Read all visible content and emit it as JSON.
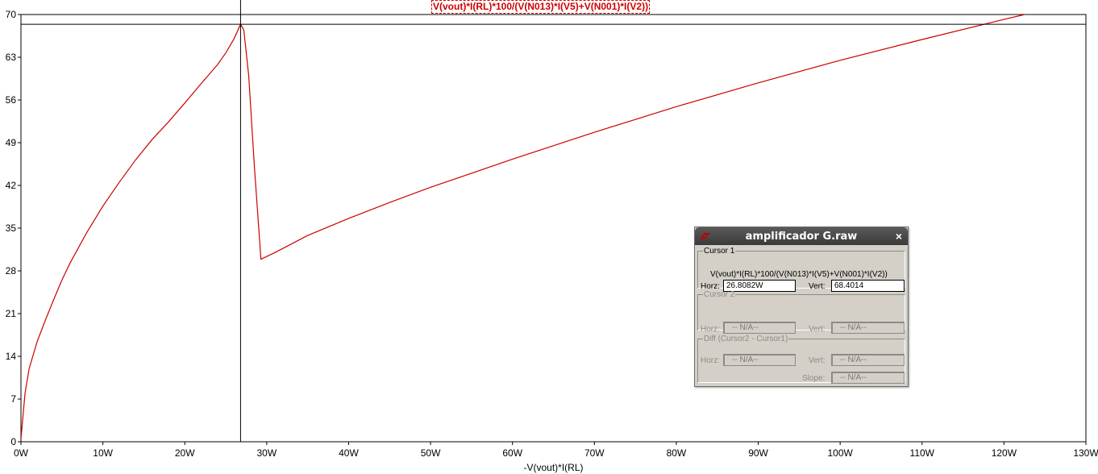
{
  "window": {
    "trace_title": "V(vout)*I(RL)*100/(V(N013)*I(V5)+V(N001)*I(V2))"
  },
  "colors": {
    "trace": "#cc0000",
    "axes": "#000000",
    "background": "#ffffff"
  },
  "chart_data": {
    "type": "line",
    "title": "V(vout)*I(RL)*100/(V(N013)*I(V5)+V(N001)*I(V2))",
    "xlabel": "-V(vout)*I(RL)",
    "ylabel": "",
    "xlim": [
      0,
      130
    ],
    "ylim": [
      0,
      70
    ],
    "x_tick_labels": [
      "0W",
      "10W",
      "20W",
      "30W",
      "40W",
      "50W",
      "60W",
      "70W",
      "80W",
      "90W",
      "100W",
      "110W",
      "120W",
      "130W"
    ],
    "y_tick_labels": [
      "0",
      "7",
      "14",
      "21",
      "28",
      "35",
      "42",
      "49",
      "56",
      "63",
      "70"
    ],
    "cursor_x": 26.8082,
    "cursor_y": 68.4014,
    "series": [
      {
        "x": [
          0,
          0.5,
          1,
          2,
          3,
          4,
          5,
          6,
          8,
          10,
          12,
          14,
          16,
          18,
          20,
          22,
          24,
          25,
          26,
          26.8082,
          27.2,
          27.8,
          28.5,
          29.3,
          31,
          35,
          40,
          45,
          50,
          55,
          60,
          70,
          80,
          90,
          100,
          110,
          120,
          130
        ],
        "y": [
          0.5,
          8,
          12,
          16.5,
          20,
          23.3,
          26.5,
          29.3,
          34.2,
          38.6,
          42.5,
          46.2,
          49.5,
          52.4,
          55.5,
          58.7,
          61.8,
          63.7,
          66.0,
          68.4014,
          67.5,
          60,
          45,
          29.9,
          31.0,
          33.8,
          36.6,
          39.2,
          41.7,
          44,
          46.3,
          50.7,
          54.9,
          58.8,
          62.5,
          65.9,
          69.2,
          72.4
        ]
      }
    ]
  },
  "dialog": {
    "title": "amplificador G.raw",
    "close_glyph": "×",
    "cursor1": {
      "legend": "Cursor 1",
      "expression": "V(vout)*I(RL)*100/(V(N013)*I(V5)+V(N001)*I(V2))",
      "horz_label": "Horz:",
      "horz_value": "26.8082W",
      "vert_label": "Vert:",
      "vert_value": "68.4014"
    },
    "cursor2": {
      "legend": "Cursor 2",
      "horz_label": "Horz:",
      "horz_value": "-- N/A--",
      "vert_label": "Vert:",
      "vert_value": "-- N/A--"
    },
    "diff": {
      "legend": "Diff (Cursor2 - Cursor1)",
      "horz_label": "Horz:",
      "horz_value": "-- N/A--",
      "vert_label": "Vert:",
      "vert_value": "-- N/A--",
      "slope_label": "Slope:",
      "slope_value": "-- N/A--"
    }
  }
}
